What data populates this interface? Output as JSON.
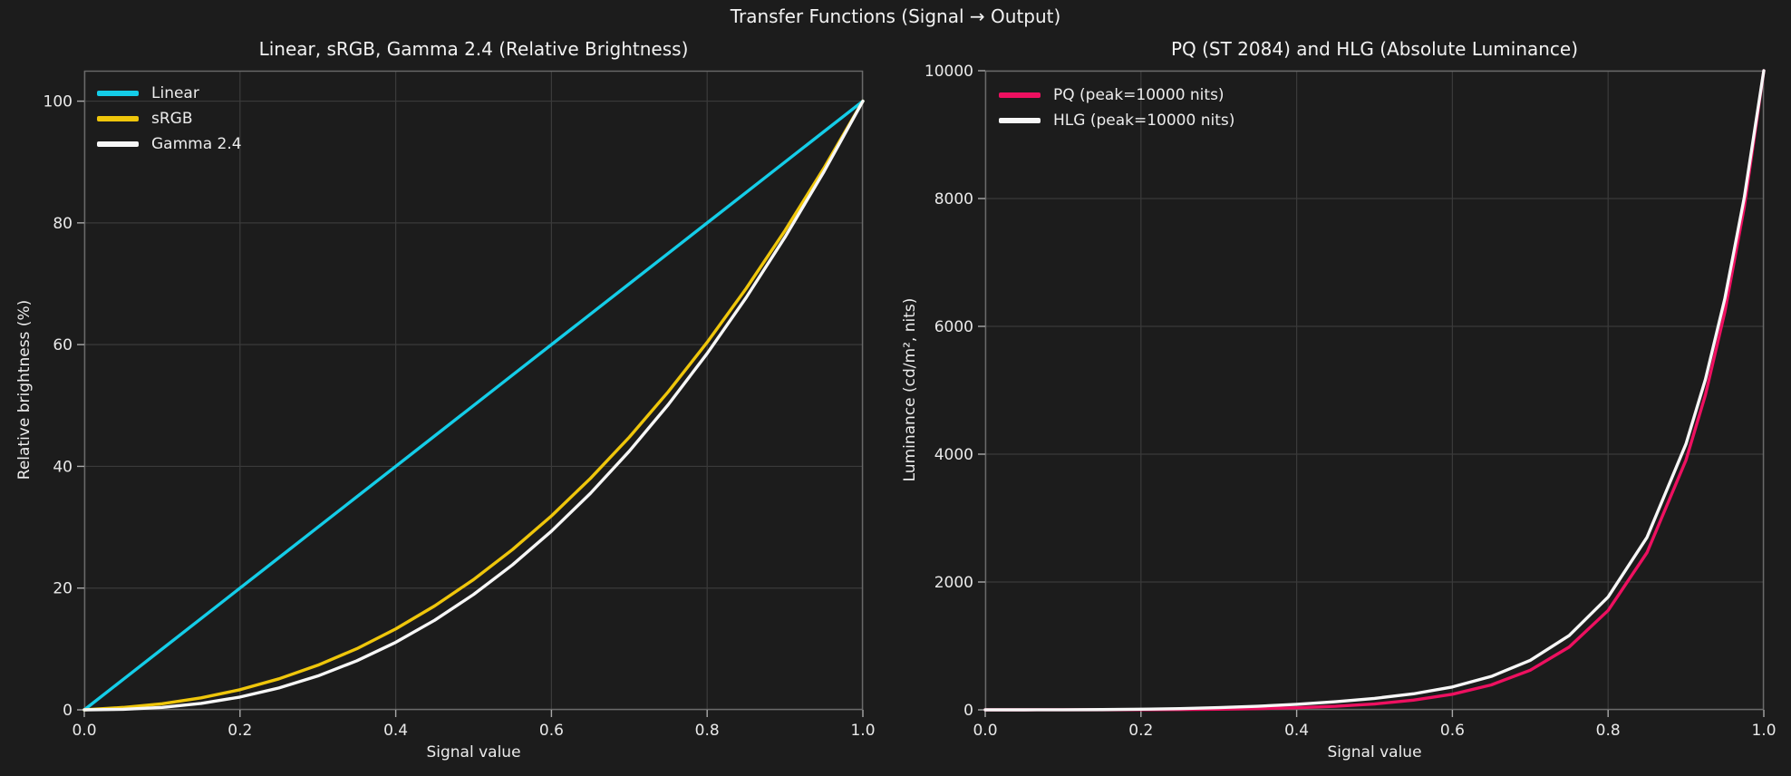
{
  "figure": {
    "suptitle": "Transfer Functions (Signal → Output)",
    "background": "#1c1c1c",
    "grid_color": "#3a3a3a",
    "spine_color": "#6a6a6a",
    "tick_mark_color": "#a9a9a9",
    "text_color": "#ececec"
  },
  "chart_data": [
    {
      "type": "line",
      "title": "Linear, sRGB, Gamma 2.4 (Relative Brightness)",
      "xlabel": "Signal value",
      "ylabel": "Relative brightness (%)",
      "xlim": [
        0,
        1
      ],
      "ylim": [
        0,
        105
      ],
      "grid": true,
      "legend_position": "upper left",
      "xticks": [
        0.0,
        0.2,
        0.4,
        0.6,
        0.8,
        1.0
      ],
      "xtick_labels": [
        "0.0",
        "0.2",
        "0.4",
        "0.6",
        "0.8",
        "1.0"
      ],
      "yticks": [
        0,
        20,
        40,
        60,
        80,
        100
      ],
      "ytick_labels": [
        "0",
        "20",
        "40",
        "60",
        "80",
        "100"
      ],
      "x": [
        0,
        0.05,
        0.1,
        0.15,
        0.2,
        0.25,
        0.3,
        0.35,
        0.4,
        0.45,
        0.5,
        0.55,
        0.6,
        0.65,
        0.7,
        0.75,
        0.8,
        0.85,
        0.9,
        0.95,
        1.0
      ],
      "series": [
        {
          "name": "Linear",
          "color": "#14cde8",
          "values": [
            0,
            5,
            10,
            15,
            20,
            25,
            30,
            35,
            40,
            45,
            50,
            55,
            60,
            65,
            70,
            75,
            80,
            85,
            90,
            95,
            100
          ]
        },
        {
          "name": "sRGB",
          "color": "#efc60b",
          "values": [
            0,
            0.39,
            1.0,
            1.96,
            3.31,
            5.09,
            7.33,
            10.04,
            13.29,
            17.07,
            21.4,
            26.33,
            31.85,
            38.01,
            44.79,
            52.25,
            60.38,
            69.2,
            78.74,
            89.0,
            100
          ]
        },
        {
          "name": "Gamma 2.4",
          "color": "#f7f7f7",
          "values": [
            0,
            0.08,
            0.4,
            1.05,
            2.1,
            3.59,
            5.56,
            8.05,
            11.09,
            14.72,
            18.95,
            23.82,
            29.35,
            35.56,
            42.49,
            50.14,
            58.54,
            67.71,
            77.66,
            88.42,
            100
          ]
        }
      ]
    },
    {
      "type": "line",
      "title": "PQ (ST 2084) and HLG (Absolute Luminance)",
      "xlabel": "Signal value",
      "ylabel": "Luminance (cd/m², nits)",
      "xlim": [
        0,
        1
      ],
      "ylim": [
        0,
        10000
      ],
      "grid": true,
      "legend_position": "upper left",
      "xticks": [
        0.0,
        0.2,
        0.4,
        0.6,
        0.8,
        1.0
      ],
      "xtick_labels": [
        "0.0",
        "0.2",
        "0.4",
        "0.6",
        "0.8",
        "1.0"
      ],
      "yticks": [
        0,
        2000,
        4000,
        6000,
        8000,
        10000
      ],
      "ytick_labels": [
        "0",
        "2000",
        "4000",
        "6000",
        "8000",
        "10000"
      ],
      "x": [
        0,
        0.05,
        0.1,
        0.15,
        0.2,
        0.25,
        0.3,
        0.35,
        0.4,
        0.45,
        0.5,
        0.55,
        0.6,
        0.65,
        0.7,
        0.75,
        0.8,
        0.85,
        0.9,
        0.925,
        0.95,
        0.975,
        1.0
      ],
      "series": [
        {
          "name": "PQ (peak=10000 nits)",
          "color": "#ee1060",
          "values": [
            0,
            0.1,
            0.3,
            1.0,
            2.4,
            5.2,
            10.0,
            18.4,
            32.4,
            55.2,
            92.1,
            150.9,
            243.8,
            390,
            620,
            982,
            1554,
            2461,
            3906,
            4929,
            6229,
            7874,
            10000
          ]
        },
        {
          "name": "HLG (peak=10000 nits)",
          "color": "#f7f7f7",
          "values": [
            0,
            0.1,
            1.0,
            3.6,
            9.2,
            18.9,
            34.1,
            56.1,
            86.6,
            126.9,
            178.7,
            250.1,
            357.9,
            522.6,
            773.6,
            1162.4,
            1764.7,
            2700,
            4158.3,
            5170.2,
            6436.2,
            8019.9,
            10000
          ]
        }
      ]
    }
  ]
}
